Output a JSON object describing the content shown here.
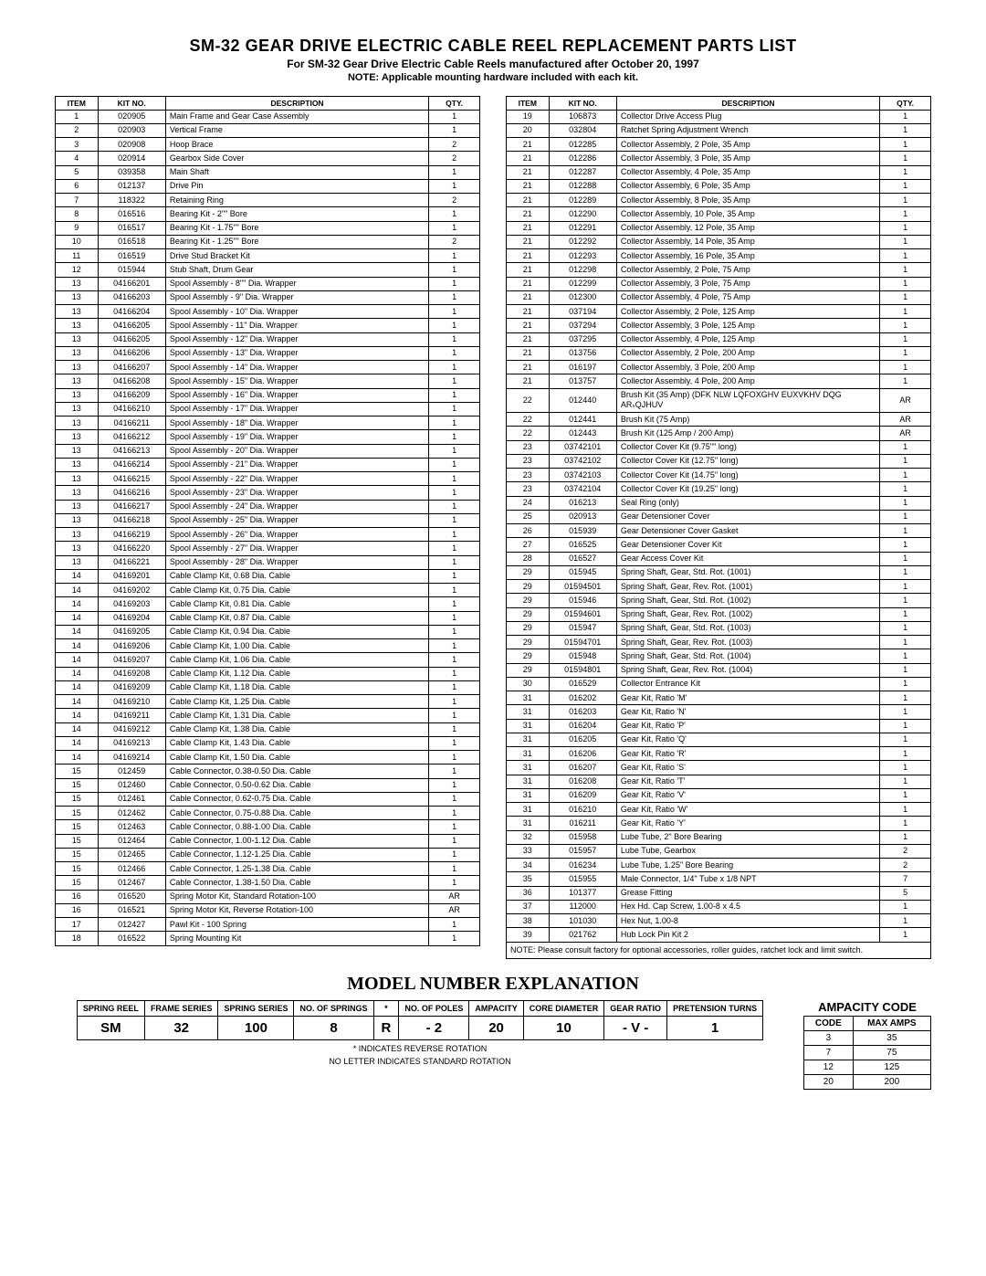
{
  "title": "SM-32 GEAR DRIVE ELECTRIC CABLE REEL REPLACEMENT PARTS LIST",
  "subtitle": "For SM-32 Gear Drive Electric Cable Reels manufactured after October 20, 1997",
  "note": "NOTE: Applicable mounting hardware included with each kit.",
  "headers": {
    "item": "ITEM",
    "kit": "KIT NO.",
    "desc": "DESCRIPTION",
    "qty": "QTY."
  },
  "left_rows": [
    {
      "item": "1",
      "kit": "020905",
      "desc": "Main Frame and Gear Case Assembly",
      "qty": "1"
    },
    {
      "item": "2",
      "kit": "020903",
      "desc": "Vertical Frame",
      "qty": "1"
    },
    {
      "item": "3",
      "kit": "020908",
      "desc": "Hoop Brace",
      "qty": "2"
    },
    {
      "item": "4",
      "kit": "020914",
      "desc": "Gearbox Side Cover",
      "qty": "2"
    },
    {
      "item": "5",
      "kit": "039358",
      "desc": "Main Shaft",
      "qty": "1"
    },
    {
      "item": "6",
      "kit": "012137",
      "desc": "Drive Pin",
      "qty": "1"
    },
    {
      "item": "7",
      "kit": "118322",
      "desc": "Retaining Ring",
      "qty": "2"
    },
    {
      "item": "8",
      "kit": "016516",
      "desc": "Bearing Kit - 2\"\" Bore",
      "qty": "1"
    },
    {
      "item": "9",
      "kit": "016517",
      "desc": "Bearing Kit - 1.75\"\" Bore",
      "qty": "1"
    },
    {
      "item": "10",
      "kit": "016518",
      "desc": "Bearing Kit - 1.25\"\" Bore",
      "qty": "2"
    },
    {
      "item": "11",
      "kit": "016519",
      "desc": "Drive Stud Bracket Kit",
      "qty": "1"
    },
    {
      "item": "12",
      "kit": "015944",
      "desc": "Stub Shaft, Drum Gear",
      "qty": "1"
    },
    {
      "item": "13",
      "kit": "04166201",
      "desc": "Spool Assembly - 8\"\" Dia. Wrapper",
      "qty": "1"
    },
    {
      "item": "13",
      "kit": "04166203",
      "desc": "Spool Assembly - 9\" Dia. Wrapper",
      "qty": "1"
    },
    {
      "item": "13",
      "kit": "04166204",
      "desc": "Spool Assembly - 10\" Dia. Wrapper",
      "qty": "1"
    },
    {
      "item": "13",
      "kit": "04166205",
      "desc": "Spool Assembly - 11\" Dia. Wrapper",
      "qty": "1"
    },
    {
      "item": "13",
      "kit": "04166205",
      "desc": "Spool Assembly - 12\" Dia. Wrapper",
      "qty": "1"
    },
    {
      "item": "13",
      "kit": "04166206",
      "desc": "Spool Assembly - 13\" Dia. Wrapper",
      "qty": "1"
    },
    {
      "item": "13",
      "kit": "04166207",
      "desc": "Spool Assembly - 14\" Dia. Wrapper",
      "qty": "1"
    },
    {
      "item": "13",
      "kit": "04166208",
      "desc": "Spool Assembly - 15\" Dia. Wrapper",
      "qty": "1"
    },
    {
      "item": "13",
      "kit": "04166209",
      "desc": "Spool Assembly - 16\" Dia. Wrapper",
      "qty": "1"
    },
    {
      "item": "13",
      "kit": "04166210",
      "desc": "Spool Assembly - 17\" Dia. Wrapper",
      "qty": "1"
    },
    {
      "item": "13",
      "kit": "04166211",
      "desc": "Spool Assembly - 18\" Dia. Wrapper",
      "qty": "1"
    },
    {
      "item": "13",
      "kit": "04166212",
      "desc": "Spool Assembly - 19\" Dia. Wrapper",
      "qty": "1"
    },
    {
      "item": "13",
      "kit": "04166213",
      "desc": "Spool Assembly - 20\" Dia. Wrapper",
      "qty": "1"
    },
    {
      "item": "13",
      "kit": "04166214",
      "desc": "Spool Assembly - 21\" Dia. Wrapper",
      "qty": "1"
    },
    {
      "item": "13",
      "kit": "04166215",
      "desc": "Spool Assembly - 22\" Dia. Wrapper",
      "qty": "1"
    },
    {
      "item": "13",
      "kit": "04166216",
      "desc": "Spool Assembly - 23\" Dia. Wrapper",
      "qty": "1"
    },
    {
      "item": "13",
      "kit": "04166217",
      "desc": "Spool Assembly - 24\" Dia. Wrapper",
      "qty": "1"
    },
    {
      "item": "13",
      "kit": "04166218",
      "desc": "Spool Assembly - 25\" Dia. Wrapper",
      "qty": "1"
    },
    {
      "item": "13",
      "kit": "04166219",
      "desc": "Spool Assembly - 26\" Dia. Wrapper",
      "qty": "1"
    },
    {
      "item": "13",
      "kit": "04166220",
      "desc": "Spool Assembly - 27\" Dia. Wrapper",
      "qty": "1"
    },
    {
      "item": "13",
      "kit": "04166221",
      "desc": "Spool Assembly - 28\" Dia. Wrapper",
      "qty": "1"
    },
    {
      "item": "14",
      "kit": "04169201",
      "desc": "Cable Clamp Kit, 0.68 Dia. Cable",
      "qty": "1"
    },
    {
      "item": "14",
      "kit": "04169202",
      "desc": "Cable Clamp Kit, 0.75 Dia. Cable",
      "qty": "1"
    },
    {
      "item": "14",
      "kit": "04169203",
      "desc": "Cable Clamp Kit, 0.81 Dia. Cable",
      "qty": "1"
    },
    {
      "item": "14",
      "kit": "04169204",
      "desc": "Cable Clamp Kit, 0.87 Dia. Cable",
      "qty": "1"
    },
    {
      "item": "14",
      "kit": "04169205",
      "desc": "Cable Clamp Kit, 0.94 Dia. Cable",
      "qty": "1"
    },
    {
      "item": "14",
      "kit": "04169206",
      "desc": "Cable Clamp Kit, 1.00 Dia. Cable",
      "qty": "1"
    },
    {
      "item": "14",
      "kit": "04169207",
      "desc": "Cable Clamp Kit, 1.06 Dia. Cable",
      "qty": "1"
    },
    {
      "item": "14",
      "kit": "04169208",
      "desc": "Cable Clamp Kit, 1.12 Dia. Cable",
      "qty": "1"
    },
    {
      "item": "14",
      "kit": "04169209",
      "desc": "Cable Clamp Kit, 1.18 Dia. Cable",
      "qty": "1"
    },
    {
      "item": "14",
      "kit": "04169210",
      "desc": "Cable Clamp Kit, 1.25 Dia. Cable",
      "qty": "1"
    },
    {
      "item": "14",
      "kit": "04169211",
      "desc": "Cable Clamp Kit, 1.31 Dia. Cable",
      "qty": "1"
    },
    {
      "item": "14",
      "kit": "04169212",
      "desc": "Cable Clamp Kit, 1.38 Dia. Cable",
      "qty": "1"
    },
    {
      "item": "14",
      "kit": "04169213",
      "desc": "Cable Clamp Kit, 1.43 Dia. Cable",
      "qty": "1"
    },
    {
      "item": "14",
      "kit": "04169214",
      "desc": "Cable Clamp Kit, 1.50 Dia. Cable",
      "qty": "1"
    },
    {
      "item": "15",
      "kit": "012459",
      "desc": "Cable Connector, 0.38-0.50 Dia. Cable",
      "qty": "1"
    },
    {
      "item": "15",
      "kit": "012460",
      "desc": "Cable Connector, 0.50-0.62 Dia. Cable",
      "qty": "1"
    },
    {
      "item": "15",
      "kit": "012461",
      "desc": "Cable Connector, 0.62-0.75 Dia. Cable",
      "qty": "1"
    },
    {
      "item": "15",
      "kit": "012462",
      "desc": "Cable Connector, 0.75-0.88 Dia. Cable",
      "qty": "1"
    },
    {
      "item": "15",
      "kit": "012463",
      "desc": "Cable Connector, 0.88-1.00 Dia. Cable",
      "qty": "1"
    },
    {
      "item": "15",
      "kit": "012464",
      "desc": "Cable Connector, 1.00-1.12 Dia. Cable",
      "qty": "1"
    },
    {
      "item": "15",
      "kit": "012465",
      "desc": "Cable Connector, 1.12-1.25 Dia. Cable",
      "qty": "1"
    },
    {
      "item": "15",
      "kit": "012466",
      "desc": "Cable Connector, 1.25-1.38 Dia. Cable",
      "qty": "1"
    },
    {
      "item": "15",
      "kit": "012467",
      "desc": "Cable Connector, 1.38-1.50 Dia. Cable",
      "qty": "1"
    },
    {
      "item": "16",
      "kit": "016520",
      "desc": "Spring Motor Kit, Standard Rotation-100",
      "qty": "AR"
    },
    {
      "item": "16",
      "kit": "016521",
      "desc": "Spring Motor Kit, Reverse Rotation-100",
      "qty": "AR"
    },
    {
      "item": "17",
      "kit": "012427",
      "desc": "Pawl Kit - 100 Spring",
      "qty": "1"
    },
    {
      "item": "18",
      "kit": "016522",
      "desc": "Spring Mounting Kit",
      "qty": "1"
    }
  ],
  "right_rows": [
    {
      "item": "19",
      "kit": "106873",
      "desc": "Collector Drive Access Plug",
      "qty": "1"
    },
    {
      "item": "20",
      "kit": "032804",
      "desc": "Ratchet Spring Adjustment Wrench",
      "qty": "1"
    },
    {
      "item": "21",
      "kit": "012285",
      "desc": "Collector Assembly, 2 Pole, 35 Amp",
      "qty": "1"
    },
    {
      "item": "21",
      "kit": "012286",
      "desc": "Collector Assembly, 3 Pole, 35 Amp",
      "qty": "1"
    },
    {
      "item": "21",
      "kit": "012287",
      "desc": "Collector Assembly, 4 Pole, 35 Amp",
      "qty": "1"
    },
    {
      "item": "21",
      "kit": "012288",
      "desc": "Collector Assembly, 6 Pole, 35 Amp",
      "qty": "1"
    },
    {
      "item": "21",
      "kit": "012289",
      "desc": "Collector Assembly, 8 Pole, 35 Amp",
      "qty": "1"
    },
    {
      "item": "21",
      "kit": "012290",
      "desc": "Collector Assembly, 10 Pole, 35 Amp",
      "qty": "1"
    },
    {
      "item": "21",
      "kit": "012291",
      "desc": "Collector Assembly, 12 Pole, 35 Amp",
      "qty": "1"
    },
    {
      "item": "21",
      "kit": "012292",
      "desc": "Collector Assembly, 14 Pole, 35 Amp",
      "qty": "1"
    },
    {
      "item": "21",
      "kit": "012293",
      "desc": "Collector Assembly, 16 Pole, 35 Amp",
      "qty": "1"
    },
    {
      "item": "21",
      "kit": "012298",
      "desc": "Collector Assembly, 2 Pole, 75 Amp",
      "qty": "1"
    },
    {
      "item": "21",
      "kit": "012299",
      "desc": "Collector Assembly, 3 Pole, 75 Amp",
      "qty": "1"
    },
    {
      "item": "21",
      "kit": "012300",
      "desc": "Collector Assembly, 4 Pole, 75 Amp",
      "qty": "1"
    },
    {
      "item": "21",
      "kit": "037194",
      "desc": "Collector Assembly, 2 Pole, 125 Amp",
      "qty": "1"
    },
    {
      "item": "21",
      "kit": "037294",
      "desc": "Collector Assembly, 3 Pole, 125 Amp",
      "qty": "1"
    },
    {
      "item": "21",
      "kit": "037295",
      "desc": "Collector Assembly, 4 Pole, 125 Amp",
      "qty": "1"
    },
    {
      "item": "21",
      "kit": "013756",
      "desc": "Collector Assembly, 2 Pole, 200 Amp",
      "qty": "1"
    },
    {
      "item": "21",
      "kit": "016197",
      "desc": "Collector Assembly, 3 Pole, 200 Amp",
      "qty": "1"
    },
    {
      "item": "21",
      "kit": "013757",
      "desc": "Collector Assembly, 4 Pole, 200 Amp",
      "qty": "1"
    },
    {
      "item": "22",
      "kit": "012440",
      "desc": "Brush Kit (35 Amp)\n(DFK NLW LQFOXGHV   EUXVKHV   DQG   ARₛQJHUV",
      "qty": "AR"
    },
    {
      "item": "22",
      "kit": "012441",
      "desc": "Brush Kit (75 Amp)",
      "qty": "AR"
    },
    {
      "item": "22",
      "kit": "012443",
      "desc": "Brush Kit (125 Amp / 200 Amp)",
      "qty": "AR"
    },
    {
      "item": "23",
      "kit": "03742101",
      "desc": "Collector Cover Kit (9.75\"\" long)",
      "qty": "1"
    },
    {
      "item": "23",
      "kit": "03742102",
      "desc": "Collector Cover Kit (12.75\" long)",
      "qty": "1"
    },
    {
      "item": "23",
      "kit": "03742103",
      "desc": "Collector Cover Kit (14.75\" long)",
      "qty": "1"
    },
    {
      "item": "23",
      "kit": "03742104",
      "desc": "Collector Cover Kit (19.25\" long)",
      "qty": "1"
    },
    {
      "item": "24",
      "kit": "016213",
      "desc": "Seal Ring (only)",
      "qty": "1"
    },
    {
      "item": "25",
      "kit": "020913",
      "desc": "Gear Detensioner Cover",
      "qty": "1"
    },
    {
      "item": "26",
      "kit": "015939",
      "desc": "Gear Detensioner Cover Gasket",
      "qty": "1"
    },
    {
      "item": "27",
      "kit": "016525",
      "desc": "Gear Detensioner Cover Kit",
      "qty": "1"
    },
    {
      "item": "28",
      "kit": "016527",
      "desc": "Gear Access Cover Kit",
      "qty": "1"
    },
    {
      "item": "29",
      "kit": "015945",
      "desc": "Spring Shaft, Gear, Std. Rot. (1001)",
      "qty": "1"
    },
    {
      "item": "29",
      "kit": "01594501",
      "desc": "Spring Shaft, Gear, Rev. Rot. (1001)",
      "qty": "1"
    },
    {
      "item": "29",
      "kit": "015946",
      "desc": "Spring Shaft, Gear, Std. Rot. (1002)",
      "qty": "1"
    },
    {
      "item": "29",
      "kit": "01594601",
      "desc": "Spring Shaft, Gear, Rev. Rot. (1002)",
      "qty": "1"
    },
    {
      "item": "29",
      "kit": "015947",
      "desc": "Spring Shaft, Gear, Std. Rot. (1003)",
      "qty": "1"
    },
    {
      "item": "29",
      "kit": "01594701",
      "desc": "Spring Shaft, Gear, Rev. Rot. (1003)",
      "qty": "1"
    },
    {
      "item": "29",
      "kit": "015948",
      "desc": "Spring Shaft, Gear, Std. Rot. (1004)",
      "qty": "1"
    },
    {
      "item": "29",
      "kit": "01594801",
      "desc": "Spring Shaft, Gear, Rev. Rot. (1004)",
      "qty": "1"
    },
    {
      "item": "30",
      "kit": "016529",
      "desc": "Collector Entrance Kit",
      "qty": "1"
    },
    {
      "item": "31",
      "kit": "016202",
      "desc": "Gear Kit, Ratio 'M'",
      "qty": "1"
    },
    {
      "item": "31",
      "kit": "016203",
      "desc": "Gear Kit, Ratio 'N'",
      "qty": "1"
    },
    {
      "item": "31",
      "kit": "016204",
      "desc": "Gear Kit, Ratio 'P'",
      "qty": "1"
    },
    {
      "item": "31",
      "kit": "016205",
      "desc": "Gear Kit, Ratio 'Q'",
      "qty": "1"
    },
    {
      "item": "31",
      "kit": "016206",
      "desc": "Gear Kit, Ratio 'R'",
      "qty": "1"
    },
    {
      "item": "31",
      "kit": "016207",
      "desc": "Gear Kit, Ratio 'S'",
      "qty": "1"
    },
    {
      "item": "31",
      "kit": "016208",
      "desc": "Gear Kit, Ratio 'T'",
      "qty": "1"
    },
    {
      "item": "31",
      "kit": "016209",
      "desc": "Gear Kit, Ratio 'V'",
      "qty": "1"
    },
    {
      "item": "31",
      "kit": "016210",
      "desc": "Gear Kit, Ratio 'W'",
      "qty": "1"
    },
    {
      "item": "31",
      "kit": "016211",
      "desc": "Gear Kit, Ratio 'Y'",
      "qty": "1"
    },
    {
      "item": "32",
      "kit": "015958",
      "desc": "Lube Tube, 2\" Bore Bearing",
      "qty": "1"
    },
    {
      "item": "33",
      "kit": "015957",
      "desc": "Lube Tube, Gearbox",
      "qty": "2"
    },
    {
      "item": "34",
      "kit": "016234",
      "desc": "Lube Tube, 1.25\" Bore Bearing",
      "qty": "2"
    },
    {
      "item": "35",
      "kit": "015955",
      "desc": "Male Connector, 1/4\" Tube x 1/8 NPT",
      "qty": "7"
    },
    {
      "item": "36",
      "kit": "101377",
      "desc": "Grease Fitting",
      "qty": "5"
    },
    {
      "item": "37",
      "kit": "112000",
      "desc": "Hex Hd. Cap Screw, 1.00-8 x 4.5",
      "qty": "1"
    },
    {
      "item": "38",
      "kit": "101030",
      "desc": "Hex Nut, 1.00-8",
      "qty": "1"
    },
    {
      "item": "39",
      "kit": "021762",
      "desc": "Hub Lock Pin Kit 2",
      "qty": "1"
    }
  ],
  "right_footnote": "NOTE: Please consult factory for optional accessories, roller guides, ratchet lock and limit switch.",
  "model_section_title": "MODEL NUMBER EXPLANATION",
  "model_headers": [
    "SPRING REEL",
    "FRAME SERIES",
    "SPRING SERIES",
    "NO. OF SPRINGS",
    "*",
    "NO. OF POLES",
    "AMPACITY",
    "CORE DIAMETER",
    "GEAR RATIO",
    "PRETENSION TURNS"
  ],
  "model_values": [
    "SM",
    "32",
    "100",
    "8",
    "R",
    "- 2",
    "20",
    "10",
    "- V -",
    "1"
  ],
  "model_note1": "* INDICATES REVERSE ROTATION",
  "model_note2": "NO LETTER INDICATES STANDARD ROTATION",
  "ampacity_title": "AMPACITY CODE",
  "ampacity_headers": [
    "CODE",
    "MAX AMPS"
  ],
  "ampacity_rows": [
    {
      "code": "3",
      "amps": "35"
    },
    {
      "code": "7",
      "amps": "75"
    },
    {
      "code": "12",
      "amps": "125"
    },
    {
      "code": "20",
      "amps": "200"
    }
  ]
}
